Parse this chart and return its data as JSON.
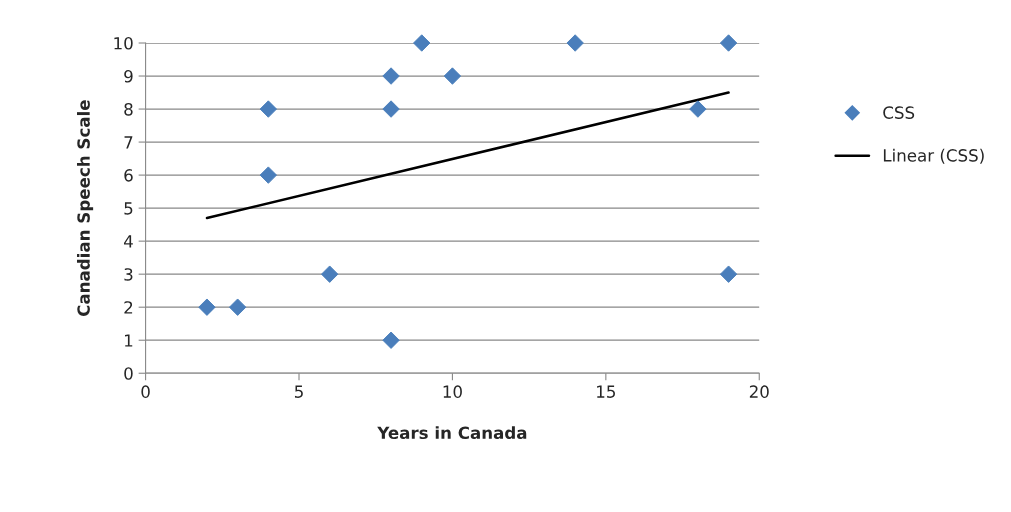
{
  "chart_data": {
    "type": "scatter",
    "xlabel": "Years in Canada",
    "ylabel": "Canadian Speech Scale",
    "xlim": [
      0,
      20
    ],
    "xticks": [
      0,
      5,
      10,
      15,
      20
    ],
    "ylim": [
      0,
      10
    ],
    "yticks": [
      0,
      1,
      2,
      3,
      4,
      5,
      6,
      7,
      8,
      9,
      10
    ],
    "grid": "y",
    "legend": "right",
    "series": [
      {
        "name": "CSS",
        "marker": "diamond",
        "color": "#4a7ebb",
        "x": [
          2,
          3,
          4,
          4,
          6,
          8,
          8,
          8,
          9,
          10,
          14,
          18,
          19,
          19
        ],
        "values": [
          2,
          2,
          8,
          6,
          3,
          9,
          8,
          1,
          10,
          9,
          10,
          8,
          10,
          3
        ]
      },
      {
        "name": "Linear (CSS)",
        "type": "line",
        "color": "#000000",
        "x": [
          2,
          19
        ],
        "values": [
          4.7,
          8.5
        ]
      }
    ]
  }
}
